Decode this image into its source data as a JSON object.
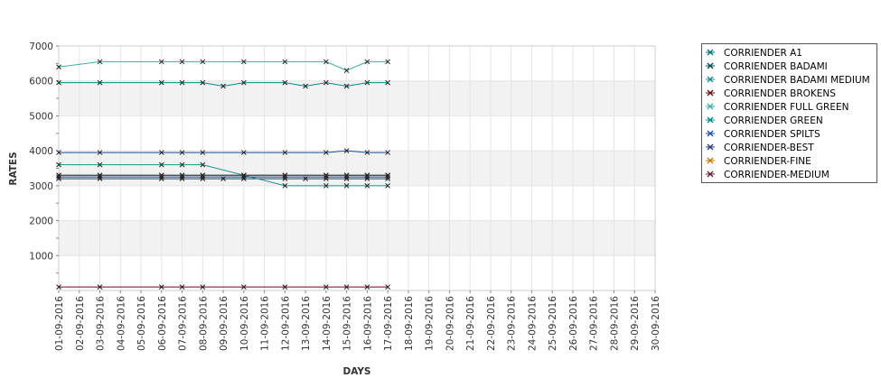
{
  "chart_data": {
    "type": "line",
    "xlabel": "DAYS",
    "ylabel": "RATES",
    "ylim": [
      0,
      7000
    ],
    "yticks": [
      1000,
      2000,
      3000,
      4000,
      5000,
      6000,
      7000
    ],
    "grid": true,
    "legend_position": "right",
    "x": [
      "01-09-2016",
      "02-09-2016",
      "03-09-2016",
      "04-09-2016",
      "05-09-2016",
      "06-09-2016",
      "07-09-2016",
      "08-09-2016",
      "09-09-2016",
      "10-09-2016",
      "11-09-2016",
      "12-09-2016",
      "13-09-2016",
      "14-09-2016",
      "15-09-2016",
      "16-09-2016",
      "17-09-2016",
      "18-09-2016",
      "19-09-2016",
      "20-09-2016",
      "21-09-2016",
      "22-09-2016",
      "23-09-2016",
      "24-09-2016",
      "25-09-2016",
      "26-09-2016",
      "27-09-2016",
      "28-09-2016",
      "29-09-2016",
      "30-09-2016"
    ],
    "series": [
      {
        "name": "CORRIENDER A1",
        "color": "#00757a",
        "points": [
          [
            "01-09-2016",
            3300
          ],
          [
            "03-09-2016",
            3300
          ],
          [
            "06-09-2016",
            3300
          ],
          [
            "07-09-2016",
            3300
          ],
          [
            "08-09-2016",
            3300
          ],
          [
            "10-09-2016",
            3300
          ],
          [
            "12-09-2016",
            3300
          ],
          [
            "14-09-2016",
            3300
          ],
          [
            "15-09-2016",
            3300
          ],
          [
            "16-09-2016",
            3300
          ],
          [
            "17-09-2016",
            3300
          ]
        ]
      },
      {
        "name": "CORRIENDER BADAMI",
        "color": "#004d4d",
        "points": [
          [
            "01-09-2016",
            3200
          ],
          [
            "03-09-2016",
            3200
          ],
          [
            "06-09-2016",
            3200
          ],
          [
            "07-09-2016",
            3200
          ],
          [
            "08-09-2016",
            3200
          ],
          [
            "09-09-2016",
            3200
          ],
          [
            "10-09-2016",
            3200
          ],
          [
            "12-09-2016",
            3200
          ],
          [
            "13-09-2016",
            3200
          ],
          [
            "14-09-2016",
            3200
          ],
          [
            "15-09-2016",
            3200
          ],
          [
            "16-09-2016",
            3200
          ],
          [
            "17-09-2016",
            3200
          ]
        ]
      },
      {
        "name": "CORRIENDER BADAMI MEDIUM",
        "color": "#1e8f8f",
        "points": [
          [
            "01-09-2016",
            3600
          ],
          [
            "03-09-2016",
            3600
          ],
          [
            "06-09-2016",
            3600
          ],
          [
            "07-09-2016",
            3600
          ],
          [
            "08-09-2016",
            3600
          ],
          [
            "10-09-2016",
            3300
          ],
          [
            "12-09-2016",
            3000
          ],
          [
            "14-09-2016",
            3000
          ],
          [
            "15-09-2016",
            3000
          ],
          [
            "16-09-2016",
            3000
          ],
          [
            "17-09-2016",
            3000
          ]
        ]
      },
      {
        "name": "CORRIENDER BROKENS",
        "color": "#6b0f0f",
        "points": [
          [
            "01-09-2016",
            100
          ],
          [
            "03-09-2016",
            100
          ],
          [
            "06-09-2016",
            100
          ],
          [
            "07-09-2016",
            100
          ],
          [
            "08-09-2016",
            100
          ],
          [
            "10-09-2016",
            100
          ],
          [
            "12-09-2016",
            100
          ],
          [
            "14-09-2016",
            100
          ],
          [
            "15-09-2016",
            100
          ],
          [
            "16-09-2016",
            100
          ],
          [
            "17-09-2016",
            100
          ]
        ]
      },
      {
        "name": "CORRIENDER FULL GREEN",
        "color": "#3aaea8",
        "points": [
          [
            "01-09-2016",
            6400
          ],
          [
            "03-09-2016",
            6550
          ],
          [
            "06-09-2016",
            6550
          ],
          [
            "07-09-2016",
            6550
          ],
          [
            "08-09-2016",
            6550
          ],
          [
            "10-09-2016",
            6550
          ],
          [
            "12-09-2016",
            6550
          ],
          [
            "14-09-2016",
            6550
          ],
          [
            "15-09-2016",
            6300
          ],
          [
            "16-09-2016",
            6550
          ],
          [
            "17-09-2016",
            6550
          ]
        ]
      },
      {
        "name": "CORRIENDER GREEN",
        "color": "#008b8b",
        "points": [
          [
            "01-09-2016",
            5950
          ],
          [
            "03-09-2016",
            5950
          ],
          [
            "06-09-2016",
            5950
          ],
          [
            "07-09-2016",
            5950
          ],
          [
            "08-09-2016",
            5950
          ],
          [
            "09-09-2016",
            5850
          ],
          [
            "10-09-2016",
            5950
          ],
          [
            "12-09-2016",
            5950
          ],
          [
            "13-09-2016",
            5850
          ],
          [
            "14-09-2016",
            5950
          ],
          [
            "15-09-2016",
            5850
          ],
          [
            "16-09-2016",
            5950
          ],
          [
            "17-09-2016",
            5950
          ]
        ]
      },
      {
        "name": "CORRIENDER SPILTS",
        "color": "#1f4fa0",
        "points": [
          [
            "01-09-2016",
            3950
          ],
          [
            "03-09-2016",
            3950
          ],
          [
            "06-09-2016",
            3950
          ],
          [
            "07-09-2016",
            3950
          ],
          [
            "08-09-2016",
            3950
          ],
          [
            "10-09-2016",
            3950
          ],
          [
            "12-09-2016",
            3950
          ],
          [
            "14-09-2016",
            3950
          ],
          [
            "15-09-2016",
            4000
          ],
          [
            "16-09-2016",
            3950
          ],
          [
            "17-09-2016",
            3950
          ]
        ]
      },
      {
        "name": "CORRIENDER-BEST",
        "color": "#2b3a7a",
        "points": [
          [
            "01-09-2016",
            3250
          ],
          [
            "03-09-2016",
            3250
          ],
          [
            "06-09-2016",
            3250
          ],
          [
            "07-09-2016",
            3250
          ],
          [
            "08-09-2016",
            3250
          ],
          [
            "10-09-2016",
            3250
          ],
          [
            "12-09-2016",
            3250
          ],
          [
            "14-09-2016",
            3250
          ],
          [
            "15-09-2016",
            3250
          ],
          [
            "16-09-2016",
            3250
          ],
          [
            "17-09-2016",
            3250
          ]
        ]
      },
      {
        "name": "CORRIENDER-FINE",
        "color": "#c87800",
        "points": []
      },
      {
        "name": "CORRIENDER-MEDIUM",
        "color": "#6a1e3a",
        "points": [
          [
            "01-09-2016",
            3300
          ],
          [
            "03-09-2016",
            3300
          ],
          [
            "06-09-2016",
            3300
          ],
          [
            "07-09-2016",
            3300
          ],
          [
            "08-09-2016",
            3300
          ],
          [
            "10-09-2016",
            3300
          ],
          [
            "12-09-2016",
            3300
          ],
          [
            "14-09-2016",
            3300
          ],
          [
            "15-09-2016",
            3300
          ],
          [
            "16-09-2016",
            3300
          ],
          [
            "17-09-2016",
            3300
          ]
        ]
      }
    ]
  }
}
